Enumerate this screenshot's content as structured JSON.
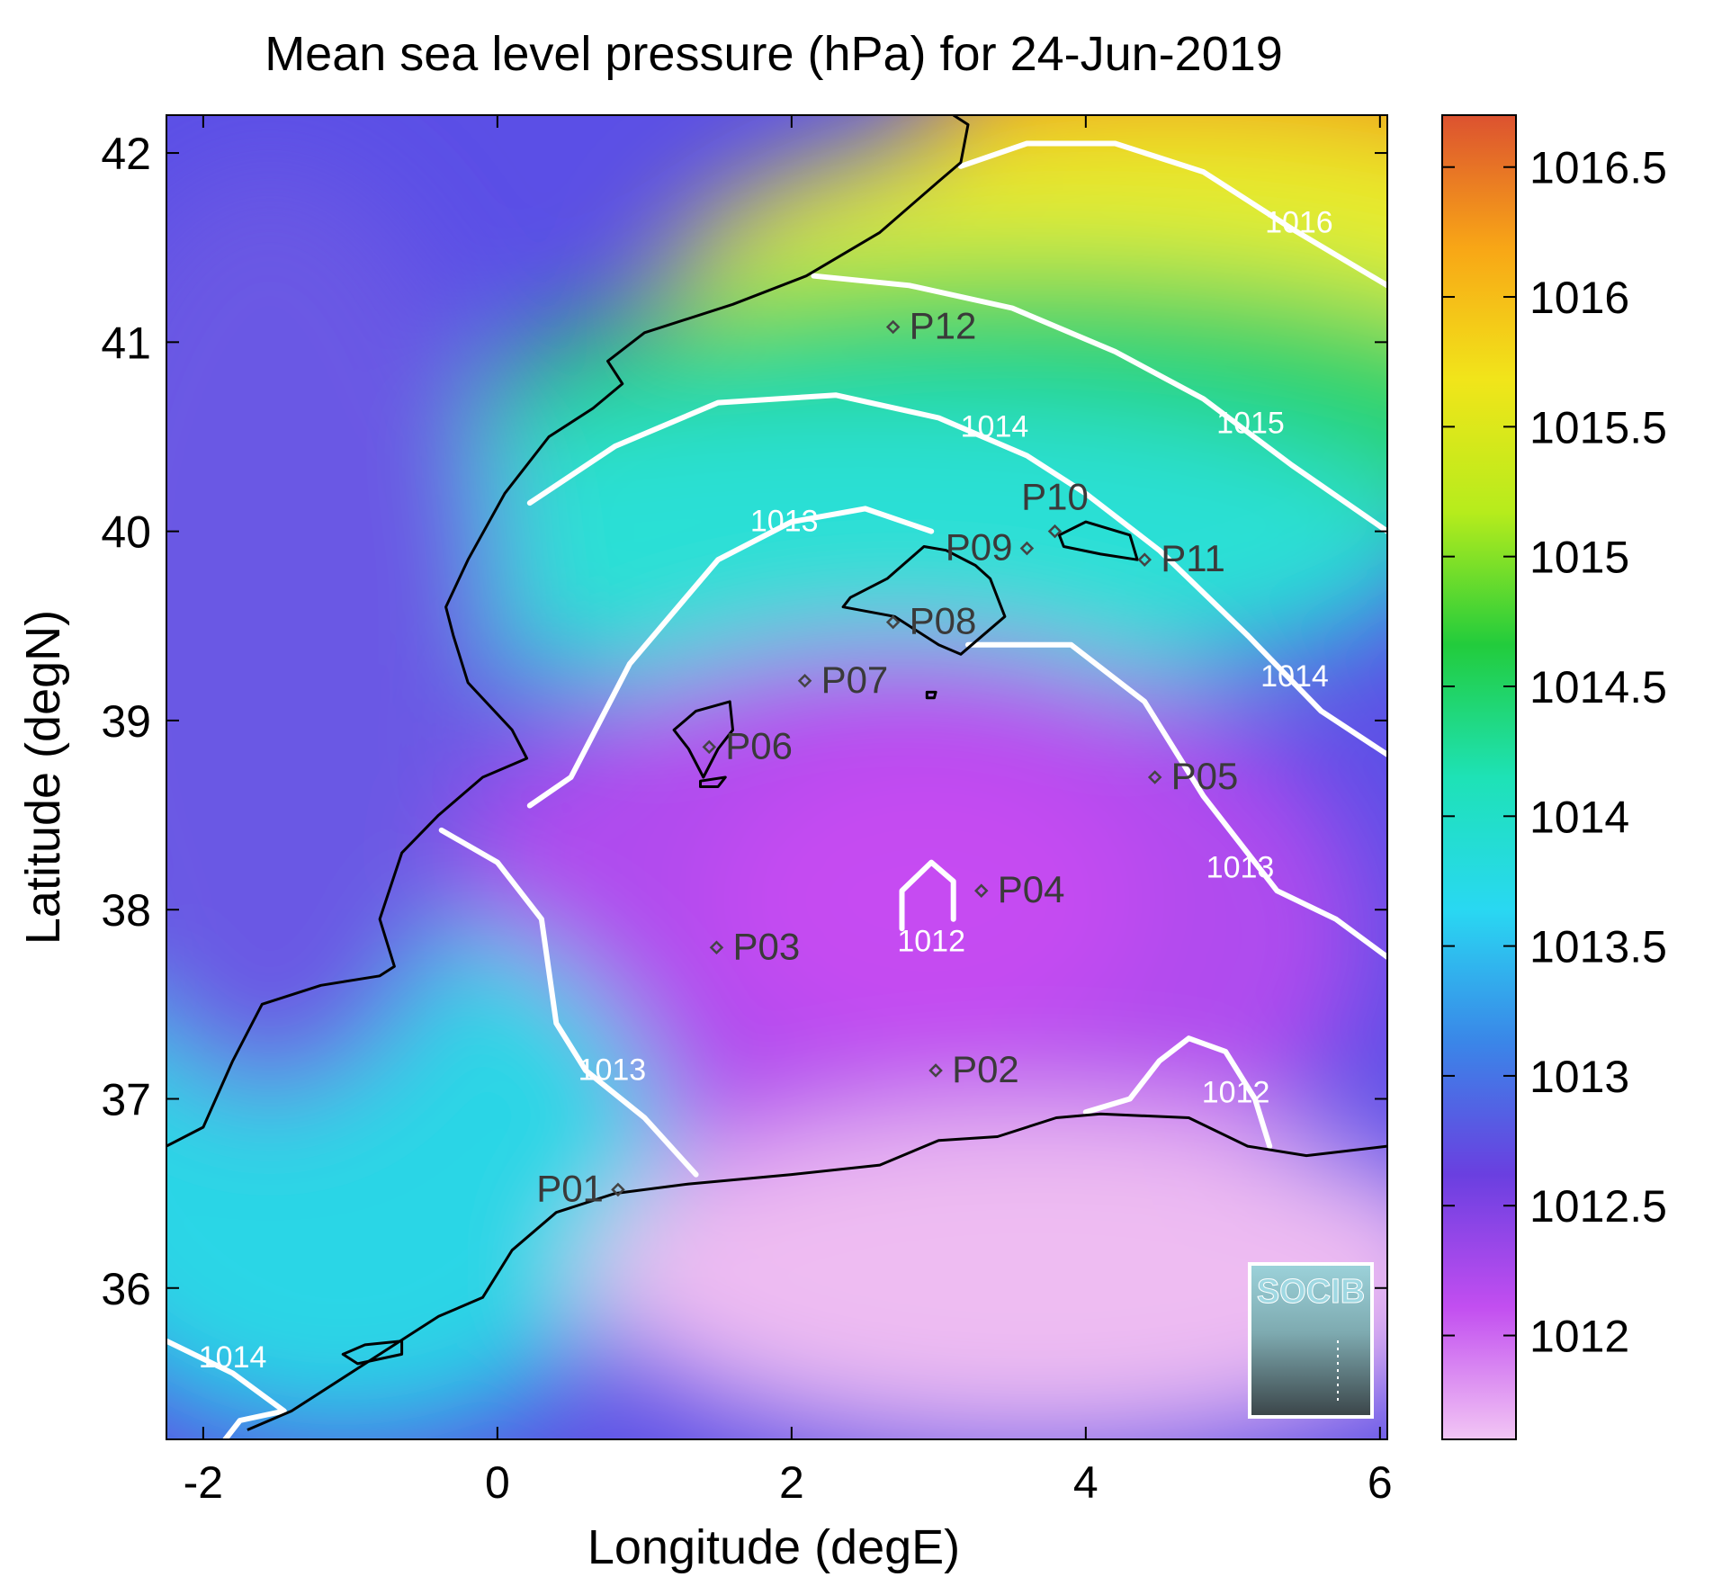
{
  "title": "Mean sea level pressure (hPa) for 24-Jun-2019",
  "x_axis": {
    "label": "Longitude (degE)",
    "min": -2.25,
    "max": 6.05,
    "ticks": [
      {
        "v": -2,
        "label": "-2"
      },
      {
        "v": 0,
        "label": "0"
      },
      {
        "v": 2,
        "label": "2"
      },
      {
        "v": 4,
        "label": "4"
      },
      {
        "v": 6,
        "label": "6"
      }
    ]
  },
  "y_axis": {
    "label": "Latitude (degN)",
    "min": 35.2,
    "max": 42.2,
    "ticks": [
      {
        "v": 36,
        "label": "36"
      },
      {
        "v": 37,
        "label": "37"
      },
      {
        "v": 38,
        "label": "38"
      },
      {
        "v": 39,
        "label": "39"
      },
      {
        "v": 40,
        "label": "40"
      },
      {
        "v": 41,
        "label": "41"
      },
      {
        "v": 42,
        "label": "42"
      }
    ]
  },
  "colorbar": {
    "min": 1011.6,
    "max": 1016.7,
    "ticks": [
      {
        "v": 1012,
        "label": "1012"
      },
      {
        "v": 1012.5,
        "label": "1012.5"
      },
      {
        "v": 1013,
        "label": "1013"
      },
      {
        "v": 1013.5,
        "label": "1013.5"
      },
      {
        "v": 1014,
        "label": "1014"
      },
      {
        "v": 1014.5,
        "label": "1014.5"
      },
      {
        "v": 1015,
        "label": "1015"
      },
      {
        "v": 1015.5,
        "label": "1015.5"
      },
      {
        "v": 1016,
        "label": "1016"
      },
      {
        "v": 1016.5,
        "label": "1016.5"
      }
    ],
    "colors": [
      "#f2c6f4",
      "#c24ef0",
      "#6a3fe0",
      "#3a86e8",
      "#29d8f2",
      "#1ee2b6",
      "#22cc3c",
      "#b6ec1c",
      "#f1e51a",
      "#f8a616",
      "#dc5230"
    ]
  },
  "stations": [
    {
      "id": "P01",
      "label": "P01",
      "lon": 0.82,
      "lat": 36.52,
      "label_side": "left"
    },
    {
      "id": "P02",
      "label": "P02",
      "lon": 2.98,
      "lat": 37.15,
      "label_side": "right"
    },
    {
      "id": "P03",
      "label": "P03",
      "lon": 1.49,
      "lat": 37.8,
      "label_side": "right"
    },
    {
      "id": "P04",
      "label": "P04",
      "lon": 3.29,
      "lat": 38.1,
      "label_side": "right"
    },
    {
      "id": "P05",
      "label": "P05",
      "lon": 4.47,
      "lat": 38.7,
      "label_side": "right"
    },
    {
      "id": "P06",
      "label": "P06",
      "lon": 1.44,
      "lat": 38.86,
      "label_side": "right"
    },
    {
      "id": "P07",
      "label": "P07",
      "lon": 2.09,
      "lat": 39.21,
      "label_side": "right"
    },
    {
      "id": "P08",
      "label": "P08",
      "lon": 2.69,
      "lat": 39.52,
      "label_side": "right"
    },
    {
      "id": "P09",
      "label": "P09",
      "lon": 3.6,
      "lat": 39.91,
      "label_side": "left"
    },
    {
      "id": "P10",
      "label": "P10",
      "lon": 3.79,
      "lat": 40.0,
      "label_side": "above"
    },
    {
      "id": "P11",
      "label": "P11",
      "lon": 4.4,
      "lat": 39.85,
      "label_side": "right"
    },
    {
      "id": "P12",
      "label": "P12",
      "lon": 2.69,
      "lat": 41.08,
      "label_side": "right"
    }
  ],
  "contours": [
    {
      "level": 1016,
      "label": "1016",
      "label_at": {
        "lon": 5.45,
        "lat": 41.58
      },
      "points": [
        [
          3.15,
          41.93
        ],
        [
          3.6,
          42.05
        ],
        [
          4.2,
          42.05
        ],
        [
          4.8,
          41.9
        ],
        [
          5.4,
          41.6
        ],
        [
          6.05,
          41.3
        ]
      ]
    },
    {
      "level": 1015,
      "label": "1015",
      "label_at": {
        "lon": 5.12,
        "lat": 40.52
      },
      "points": [
        [
          2.15,
          41.35
        ],
        [
          2.8,
          41.3
        ],
        [
          3.5,
          41.18
        ],
        [
          4.2,
          40.95
        ],
        [
          4.8,
          40.7
        ],
        [
          5.4,
          40.35
        ],
        [
          6.05,
          40.0
        ]
      ]
    },
    {
      "level": 1014,
      "label": "1014",
      "label_at": {
        "lon": 3.38,
        "lat": 40.5
      },
      "points": [
        [
          0.22,
          40.15
        ],
        [
          0.8,
          40.45
        ],
        [
          1.5,
          40.68
        ],
        [
          2.3,
          40.72
        ],
        [
          3.0,
          40.6
        ],
        [
          3.6,
          40.4
        ],
        [
          4.0,
          40.2
        ],
        [
          4.5,
          39.9
        ],
        [
          5.1,
          39.45
        ]
      ]
    },
    {
      "level": 1014,
      "label": "1014",
      "label_at": {
        "lon": 5.42,
        "lat": 39.18
      },
      "points": [
        [
          5.1,
          39.45
        ],
        [
          5.6,
          39.05
        ],
        [
          6.05,
          38.82
        ]
      ]
    },
    {
      "level": 1013,
      "label": "1013",
      "label_at": {
        "lon": 1.95,
        "lat": 40.0
      },
      "points": [
        [
          0.22,
          38.55
        ],
        [
          0.5,
          38.7
        ],
        [
          0.9,
          39.3
        ],
        [
          1.5,
          39.85
        ],
        [
          2.0,
          40.05
        ],
        [
          2.5,
          40.12
        ],
        [
          2.95,
          40.0
        ]
      ]
    },
    {
      "level": 1013,
      "label": "1013",
      "label_at": {
        "lon": 5.05,
        "lat": 38.17
      },
      "points": [
        [
          3.2,
          39.4
        ],
        [
          3.9,
          39.4
        ],
        [
          4.4,
          39.1
        ],
        [
          4.8,
          38.6
        ],
        [
          5.3,
          38.1
        ],
        [
          5.7,
          37.95
        ],
        [
          6.05,
          37.75
        ]
      ]
    },
    {
      "level": 1013,
      "label": "1013",
      "label_at": {
        "lon": 0.78,
        "lat": 37.1
      },
      "points": [
        [
          -0.38,
          38.42
        ],
        [
          0.0,
          38.25
        ],
        [
          0.3,
          37.95
        ],
        [
          0.4,
          37.4
        ],
        [
          0.6,
          37.15
        ],
        [
          1.0,
          36.9
        ],
        [
          1.35,
          36.6
        ]
      ]
    },
    {
      "level": 1012,
      "label": "1012",
      "label_at": {
        "lon": 2.95,
        "lat": 37.78
      },
      "points": [
        [
          2.75,
          37.9
        ],
        [
          2.75,
          38.1
        ],
        [
          2.95,
          38.25
        ],
        [
          3.1,
          38.15
        ],
        [
          3.1,
          37.95
        ]
      ]
    },
    {
      "level": 1012,
      "label": "1012",
      "label_at": {
        "lon": 5.02,
        "lat": 36.98
      },
      "points": [
        [
          4.0,
          36.93
        ],
        [
          4.3,
          37.0
        ],
        [
          4.5,
          37.2
        ],
        [
          4.7,
          37.32
        ],
        [
          4.95,
          37.25
        ],
        [
          5.15,
          37.0
        ],
        [
          5.25,
          36.75
        ]
      ]
    },
    {
      "level": 1014,
      "label": "1014",
      "label_at": {
        "lon": -1.8,
        "lat": 35.58
      },
      "points": [
        [
          -2.25,
          35.72
        ],
        [
          -1.8,
          35.55
        ],
        [
          -1.45,
          35.35
        ],
        [
          -1.75,
          35.3
        ],
        [
          -1.85,
          35.2
        ]
      ]
    }
  ],
  "coastlines": [
    {
      "name": "iberian-coast",
      "points": [
        [
          -2.25,
          36.75
        ],
        [
          -2.0,
          36.85
        ],
        [
          -1.8,
          37.2
        ],
        [
          -1.6,
          37.5
        ],
        [
          -1.2,
          37.6
        ],
        [
          -0.8,
          37.65
        ],
        [
          -0.7,
          37.7
        ],
        [
          -0.8,
          37.95
        ],
        [
          -0.65,
          38.3
        ],
        [
          -0.4,
          38.5
        ],
        [
          -0.1,
          38.7
        ],
        [
          0.2,
          38.8
        ],
        [
          0.1,
          38.95
        ],
        [
          -0.2,
          39.2
        ],
        [
          -0.3,
          39.45
        ],
        [
          -0.35,
          39.6
        ],
        [
          -0.2,
          39.85
        ],
        [
          0.05,
          40.2
        ],
        [
          0.35,
          40.5
        ],
        [
          0.65,
          40.65
        ],
        [
          0.85,
          40.78
        ],
        [
          0.75,
          40.9
        ],
        [
          1.0,
          41.05
        ],
        [
          1.6,
          41.2
        ],
        [
          2.1,
          41.35
        ],
        [
          2.6,
          41.58
        ],
        [
          3.0,
          41.85
        ],
        [
          3.15,
          41.95
        ],
        [
          3.2,
          42.15
        ],
        [
          3.1,
          42.2
        ]
      ]
    },
    {
      "name": "north-africa-coast",
      "points": [
        [
          -1.7,
          35.25
        ],
        [
          -1.4,
          35.35
        ],
        [
          -0.6,
          35.75
        ],
        [
          -0.4,
          35.85
        ],
        [
          -0.1,
          35.95
        ],
        [
          0.1,
          36.2
        ],
        [
          0.4,
          36.4
        ],
        [
          0.8,
          36.5
        ],
        [
          1.3,
          36.55
        ],
        [
          2.0,
          36.6
        ],
        [
          2.6,
          36.65
        ],
        [
          3.0,
          36.78
        ],
        [
          3.4,
          36.8
        ],
        [
          3.8,
          36.9
        ],
        [
          4.1,
          36.92
        ],
        [
          4.7,
          36.9
        ],
        [
          5.1,
          36.75
        ],
        [
          5.5,
          36.7
        ],
        [
          6.05,
          36.75
        ]
      ]
    }
  ],
  "islands": [
    {
      "name": "mallorca",
      "points": [
        [
          2.35,
          39.6
        ],
        [
          2.7,
          39.55
        ],
        [
          2.8,
          39.5
        ],
        [
          3.0,
          39.4
        ],
        [
          3.15,
          39.35
        ],
        [
          3.45,
          39.55
        ],
        [
          3.35,
          39.75
        ],
        [
          3.25,
          39.82
        ],
        [
          3.05,
          39.9
        ],
        [
          2.9,
          39.92
        ],
        [
          2.65,
          39.75
        ],
        [
          2.4,
          39.65
        ]
      ]
    },
    {
      "name": "menorca",
      "points": [
        [
          3.82,
          39.98
        ],
        [
          4.0,
          40.05
        ],
        [
          4.3,
          39.98
        ],
        [
          4.35,
          39.85
        ],
        [
          4.1,
          39.88
        ],
        [
          3.85,
          39.92
        ]
      ]
    },
    {
      "name": "ibiza",
      "points": [
        [
          1.2,
          38.95
        ],
        [
          1.35,
          39.05
        ],
        [
          1.58,
          39.1
        ],
        [
          1.6,
          38.95
        ],
        [
          1.5,
          38.85
        ],
        [
          1.4,
          38.7
        ],
        [
          1.3,
          38.85
        ]
      ]
    },
    {
      "name": "formentera",
      "points": [
        [
          1.38,
          38.68
        ],
        [
          1.55,
          38.7
        ],
        [
          1.5,
          38.65
        ],
        [
          1.38,
          38.65
        ]
      ]
    },
    {
      "name": "cabrera",
      "points": [
        [
          2.92,
          39.15
        ],
        [
          2.98,
          39.15
        ],
        [
          2.97,
          39.12
        ],
        [
          2.92,
          39.12
        ]
      ]
    },
    {
      "name": "alboran",
      "points": [
        [
          -1.05,
          35.65
        ],
        [
          -0.9,
          35.7
        ],
        [
          -0.65,
          35.72
        ],
        [
          -0.65,
          35.65
        ],
        [
          -0.95,
          35.6
        ]
      ]
    }
  ],
  "logo": {
    "text": "SOCIB"
  }
}
